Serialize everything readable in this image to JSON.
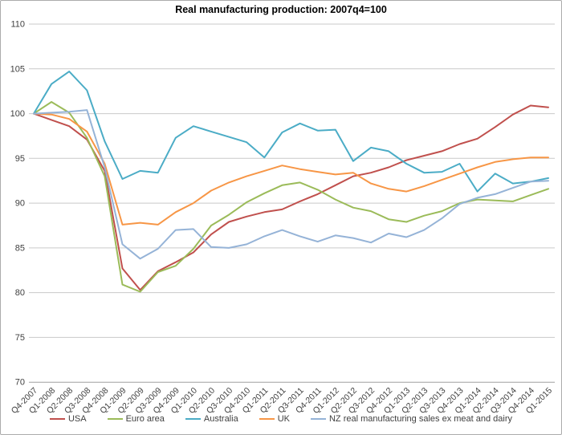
{
  "chart_data": {
    "type": "line",
    "title": "Real manufacturing production: 2007q4=100",
    "xlabel": "",
    "ylabel": "",
    "ylim": [
      70,
      110
    ],
    "yticks": [
      70,
      75,
      80,
      85,
      90,
      95,
      100,
      105,
      110
    ],
    "grid": true,
    "legend_position": "bottom",
    "categories": [
      "Q4-2007",
      "Q1-2008",
      "Q2-2008",
      "Q3-2008",
      "Q4-2008",
      "Q1-2009",
      "Q2-2009",
      "Q3-2009",
      "Q4-2009",
      "Q1-2010",
      "Q2-2010",
      "Q3-2010",
      "Q4-2010",
      "Q1-2011",
      "Q2-2011",
      "Q3-2011",
      "Q4-2011",
      "Q1-2012",
      "Q2-2012",
      "Q3-2012",
      "Q4-2012",
      "Q1-2013",
      "Q2-2013",
      "Q3-2013",
      "Q4-2013",
      "Q1-2014",
      "Q2-2014",
      "Q3-2014",
      "Q4-2014",
      "Q1-2015"
    ],
    "series": [
      {
        "name": "USA",
        "color": "#C0504D",
        "values": [
          100,
          99.3,
          98.6,
          97.1,
          93.6,
          82.7,
          80.3,
          82.4,
          83.4,
          84.5,
          86.5,
          87.9,
          88.5,
          89.0,
          89.3,
          90.2,
          91.0,
          92.0,
          93.0,
          93.4,
          94.0,
          94.8,
          95.3,
          95.8,
          96.6,
          97.2,
          98.5,
          99.9,
          100.9,
          100.7
        ]
      },
      {
        "name": "Euro area",
        "color": "#9BBB59",
        "values": [
          100,
          101.3,
          100.1,
          97.3,
          93.0,
          80.9,
          80.1,
          82.3,
          83.0,
          84.9,
          87.5,
          88.7,
          90.1,
          91.1,
          92.0,
          92.3,
          91.5,
          90.4,
          89.5,
          89.1,
          88.2,
          87.9,
          88.6,
          89.1,
          90.0,
          90.4,
          90.3,
          90.2,
          90.9,
          91.6
        ]
      },
      {
        "name": "Australia",
        "color": "#4BACC6",
        "values": [
          100,
          103.3,
          104.7,
          102.6,
          96.9,
          92.7,
          93.6,
          93.4,
          97.3,
          98.6,
          98.0,
          97.4,
          96.8,
          95.1,
          97.9,
          98.9,
          98.1,
          98.2,
          94.7,
          96.2,
          95.8,
          94.4,
          93.4,
          93.5,
          94.4,
          91.3,
          93.3,
          92.2,
          92.4,
          92.8
        ]
      },
      {
        "name": "UK",
        "color": "#F79646",
        "values": [
          100,
          99.9,
          99.4,
          98.0,
          94.4,
          87.6,
          87.8,
          87.6,
          89.0,
          90.0,
          91.4,
          92.3,
          93.0,
          93.6,
          94.2,
          93.8,
          93.5,
          93.2,
          93.4,
          92.2,
          91.6,
          91.3,
          91.9,
          92.6,
          93.3,
          94.0,
          94.6,
          94.9,
          95.1,
          95.1
        ]
      },
      {
        "name": "NZ real manufacturing sales ex meat and dairy",
        "color": "#95B3D7",
        "values": [
          100,
          100.1,
          100.2,
          100.4,
          94.0,
          85.4,
          83.8,
          84.9,
          87.0,
          87.1,
          85.1,
          85.0,
          85.4,
          86.3,
          87.0,
          86.3,
          85.7,
          86.4,
          86.1,
          85.6,
          86.6,
          86.2,
          87.0,
          88.3,
          89.9,
          90.6,
          91.0,
          91.7,
          92.4,
          92.5
        ]
      }
    ],
    "style": {
      "gridline_color": "#c9c9c9",
      "axis_line_color": "#a0a0a0",
      "tick_label_color": "#3f3f3f",
      "background": "#ffffff"
    }
  }
}
